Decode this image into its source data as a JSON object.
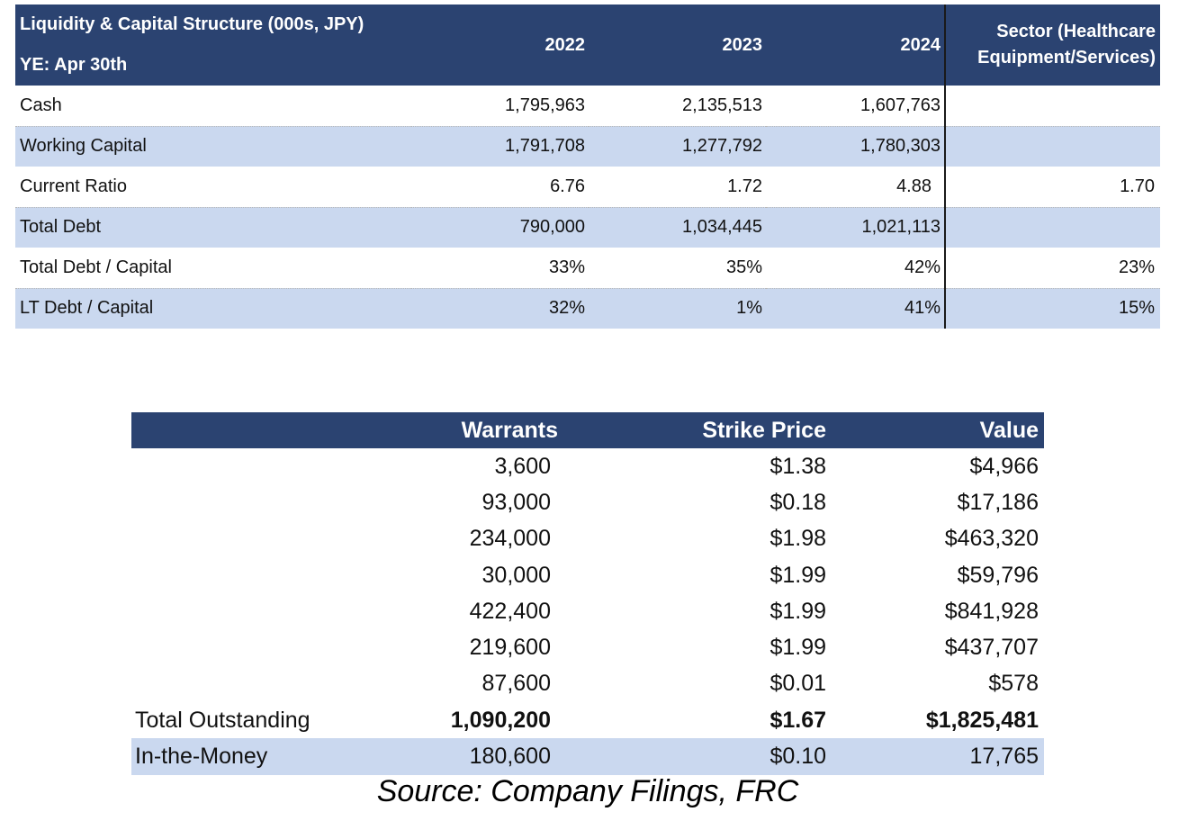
{
  "liquidity": {
    "title": "Liquidity & Capital Structure (000s, JPY)",
    "subtitle": "YE: Apr 30th",
    "years": [
      "2022",
      "2023",
      "2024"
    ],
    "sector_line1": "Sector (Healthcare",
    "sector_line2": "Equipment/Services)",
    "rows": [
      {
        "label": "Cash",
        "v2022": "1,795,963",
        "v2023": "2,135,513",
        "v2024": "1,607,763",
        "sector": ""
      },
      {
        "label": "Working Capital",
        "v2022": "1,791,708",
        "v2023": "1,277,792",
        "v2024": "1,780,303",
        "sector": ""
      },
      {
        "label": "Current Ratio",
        "v2022": "6.76",
        "v2023": "1.72",
        "v2024": "4.88",
        "sector": "1.70"
      },
      {
        "label": "Total Debt",
        "v2022": "790,000",
        "v2023": "1,034,445",
        "v2024": "1,021,113",
        "sector": ""
      },
      {
        "label": "Total Debt / Capital",
        "v2022": "33%",
        "v2023": "35%",
        "v2024": "42%",
        "sector": "23%"
      },
      {
        "label": "LT Debt / Capital",
        "v2022": "32%",
        "v2023": "1%",
        "v2024": "41%",
        "sector": "15%"
      }
    ]
  },
  "warrants": {
    "headers": {
      "warrants": "Warrants",
      "strike": "Strike Price",
      "value": "Value"
    },
    "rows": [
      {
        "warrants": "3,600",
        "strike": "$1.38",
        "value": "$4,966"
      },
      {
        "warrants": "93,000",
        "strike": "$0.18",
        "value": "$17,186"
      },
      {
        "warrants": "234,000",
        "strike": "$1.98",
        "value": "$463,320"
      },
      {
        "warrants": "30,000",
        "strike": "$1.99",
        "value": "$59,796"
      },
      {
        "warrants": "422,400",
        "strike": "$1.99",
        "value": "$841,928"
      },
      {
        "warrants": "219,600",
        "strike": "$1.99",
        "value": "$437,707"
      },
      {
        "warrants": "87,600",
        "strike": "$0.01",
        "value": "$578"
      }
    ],
    "total": {
      "label": "Total Outstanding",
      "warrants": "1,090,200",
      "strike": "$1.67",
      "value": "$1,825,481"
    },
    "in_the_money": {
      "label": "In-the-Money",
      "warrants": "180,600",
      "strike": "$0.10",
      "value": "17,765"
    }
  },
  "source": "Source: Company Filings, FRC"
}
